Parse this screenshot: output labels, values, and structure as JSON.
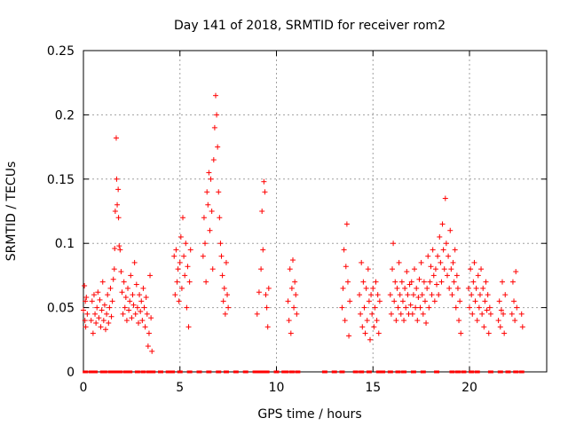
{
  "chart_data": {
    "type": "scatter",
    "title": "Day 141 of 2018, SRMTID for receiver rom2",
    "xlabel": "GPS time / hours",
    "ylabel": "SRMTID / TECUs",
    "xlim": [
      0,
      24
    ],
    "ylim": [
      0,
      0.25
    ],
    "xticks": [
      0,
      5,
      10,
      15,
      20
    ],
    "xtick_labels": [
      "0",
      "5",
      "10",
      "15",
      "20"
    ],
    "yticks": [
      0,
      0.05,
      0.1,
      0.15,
      0.2,
      0.25
    ],
    "ytick_labels": [
      "0",
      "0.05",
      "0.1",
      "0.15",
      "0.2",
      "0.25"
    ],
    "grid": true,
    "marker": "+",
    "color": "#ff0000",
    "zero_line_times": [
      0.1,
      0.4,
      0.5,
      0.6,
      1.0,
      1.1,
      1.4,
      1.5,
      1.7,
      1.9,
      2.2,
      2.4,
      2.8,
      3.1,
      3.4,
      3.6,
      4.0,
      4.4,
      4.6,
      5.0,
      5.5,
      6.0,
      6.5,
      7.0,
      7.4,
      7.9,
      8.4,
      8.9,
      9.1,
      9.3,
      9.5,
      10.0,
      10.4,
      10.5,
      10.8,
      11.1,
      12.5,
      13.0,
      13.4,
      14.1,
      14.4,
      14.8,
      15.3,
      15.5,
      15.9,
      16.3,
      16.6,
      17.1,
      17.6,
      18.3,
      19.1,
      19.4,
      19.7,
      20.1,
      20.4,
      21.1,
      21.6,
      22.0,
      22.4,
      22.7
    ],
    "series": [
      {
        "name": "SRMTID",
        "points": [
          [
            0.0,
            0.048
          ],
          [
            0.05,
            0.067
          ],
          [
            0.08,
            0.04
          ],
          [
            0.1,
            0.055
          ],
          [
            0.12,
            0.035
          ],
          [
            0.15,
            0.058
          ],
          [
            0.2,
            0.045
          ],
          [
            0.4,
            0.04
          ],
          [
            0.45,
            0.055
          ],
          [
            0.5,
            0.03
          ],
          [
            0.55,
            0.06
          ],
          [
            0.6,
            0.045
          ],
          [
            0.65,
            0.038
          ],
          [
            0.7,
            0.05
          ],
          [
            0.75,
            0.062
          ],
          [
            0.8,
            0.042
          ],
          [
            0.85,
            0.056
          ],
          [
            0.9,
            0.035
          ],
          [
            0.95,
            0.048
          ],
          [
            1.0,
            0.07
          ],
          [
            1.05,
            0.04
          ],
          [
            1.1,
            0.052
          ],
          [
            1.15,
            0.033
          ],
          [
            1.2,
            0.045
          ],
          [
            1.25,
            0.06
          ],
          [
            1.3,
            0.038
          ],
          [
            1.35,
            0.05
          ],
          [
            1.4,
            0.065
          ],
          [
            1.45,
            0.043
          ],
          [
            1.5,
            0.055
          ],
          [
            1.55,
            0.072
          ],
          [
            1.6,
            0.08
          ],
          [
            1.62,
            0.096
          ],
          [
            1.65,
            0.125
          ],
          [
            1.7,
            0.182
          ],
          [
            1.72,
            0.15
          ],
          [
            1.75,
            0.13
          ],
          [
            1.8,
            0.142
          ],
          [
            1.82,
            0.12
          ],
          [
            1.85,
            0.098
          ],
          [
            1.9,
            0.095
          ],
          [
            1.95,
            0.078
          ],
          [
            2.0,
            0.062
          ],
          [
            2.05,
            0.045
          ],
          [
            2.1,
            0.07
          ],
          [
            2.15,
            0.05
          ],
          [
            2.2,
            0.058
          ],
          [
            2.25,
            0.04
          ],
          [
            2.3,
            0.065
          ],
          [
            2.35,
            0.048
          ],
          [
            2.4,
            0.055
          ],
          [
            2.45,
            0.075
          ],
          [
            2.5,
            0.042
          ],
          [
            2.55,
            0.06
          ],
          [
            2.6,
            0.052
          ],
          [
            2.65,
            0.085
          ],
          [
            2.7,
            0.045
          ],
          [
            2.75,
            0.068
          ],
          [
            2.8,
            0.05
          ],
          [
            2.85,
            0.038
          ],
          [
            2.9,
            0.06
          ],
          [
            2.95,
            0.047
          ],
          [
            3.0,
            0.055
          ],
          [
            3.05,
            0.04
          ],
          [
            3.1,
            0.065
          ],
          [
            3.15,
            0.05
          ],
          [
            3.2,
            0.035
          ],
          [
            3.25,
            0.058
          ],
          [
            3.3,
            0.045
          ],
          [
            3.35,
            0.02
          ],
          [
            3.4,
            0.03
          ],
          [
            3.45,
            0.075
          ],
          [
            3.5,
            0.042
          ],
          [
            3.55,
            0.016
          ],
          [
            4.7,
            0.09
          ],
          [
            4.75,
            0.06
          ],
          [
            4.8,
            0.095
          ],
          [
            4.85,
            0.07
          ],
          [
            4.9,
            0.08
          ],
          [
            4.95,
            0.055
          ],
          [
            5.0,
            0.085
          ],
          [
            5.05,
            0.105
          ],
          [
            5.1,
            0.065
          ],
          [
            5.15,
            0.12
          ],
          [
            5.2,
            0.09
          ],
          [
            5.25,
            0.075
          ],
          [
            5.3,
            0.1
          ],
          [
            5.35,
            0.05
          ],
          [
            5.4,
            0.082
          ],
          [
            5.45,
            0.035
          ],
          [
            5.5,
            0.07
          ],
          [
            5.55,
            0.095
          ],
          [
            6.2,
            0.09
          ],
          [
            6.25,
            0.12
          ],
          [
            6.3,
            0.1
          ],
          [
            6.35,
            0.07
          ],
          [
            6.4,
            0.14
          ],
          [
            6.45,
            0.13
          ],
          [
            6.5,
            0.155
          ],
          [
            6.55,
            0.11
          ],
          [
            6.6,
            0.15
          ],
          [
            6.65,
            0.125
          ],
          [
            6.7,
            0.08
          ],
          [
            6.75,
            0.165
          ],
          [
            6.8,
            0.19
          ],
          [
            6.85,
            0.215
          ],
          [
            6.9,
            0.2
          ],
          [
            6.95,
            0.175
          ],
          [
            7.0,
            0.14
          ],
          [
            7.05,
            0.12
          ],
          [
            7.1,
            0.1
          ],
          [
            7.15,
            0.09
          ],
          [
            7.2,
            0.075
          ],
          [
            7.25,
            0.055
          ],
          [
            7.3,
            0.065
          ],
          [
            7.35,
            0.045
          ],
          [
            7.4,
            0.085
          ],
          [
            7.45,
            0.06
          ],
          [
            7.5,
            0.05
          ],
          [
            9.0,
            0.045
          ],
          [
            9.1,
            0.062
          ],
          [
            9.2,
            0.08
          ],
          [
            9.25,
            0.125
          ],
          [
            9.3,
            0.095
          ],
          [
            9.35,
            0.148
          ],
          [
            9.4,
            0.14
          ],
          [
            9.45,
            0.06
          ],
          [
            9.5,
            0.05
          ],
          [
            9.55,
            0.035
          ],
          [
            9.6,
            0.065
          ],
          [
            10.6,
            0.055
          ],
          [
            10.65,
            0.04
          ],
          [
            10.7,
            0.08
          ],
          [
            10.75,
            0.03
          ],
          [
            10.8,
            0.065
          ],
          [
            10.85,
            0.087
          ],
          [
            10.9,
            0.05
          ],
          [
            10.95,
            0.07
          ],
          [
            11.0,
            0.06
          ],
          [
            11.05,
            0.045
          ],
          [
            13.4,
            0.05
          ],
          [
            13.45,
            0.065
          ],
          [
            13.5,
            0.095
          ],
          [
            13.55,
            0.04
          ],
          [
            13.6,
            0.082
          ],
          [
            13.65,
            0.115
          ],
          [
            13.7,
            0.07
          ],
          [
            13.75,
            0.028
          ],
          [
            13.8,
            0.055
          ],
          [
            14.3,
            0.06
          ],
          [
            14.35,
            0.045
          ],
          [
            14.4,
            0.085
          ],
          [
            14.45,
            0.035
          ],
          [
            14.5,
            0.07
          ],
          [
            14.55,
            0.05
          ],
          [
            14.6,
            0.03
          ],
          [
            14.65,
            0.065
          ],
          [
            14.7,
            0.04
          ],
          [
            14.75,
            0.08
          ],
          [
            14.8,
            0.055
          ],
          [
            14.85,
            0.025
          ],
          [
            14.9,
            0.06
          ],
          [
            14.95,
            0.045
          ],
          [
            15.0,
            0.065
          ],
          [
            15.05,
            0.035
          ],
          [
            15.1,
            0.05
          ],
          [
            15.15,
            0.07
          ],
          [
            15.2,
            0.04
          ],
          [
            15.25,
            0.06
          ],
          [
            15.3,
            0.03
          ],
          [
            15.35,
            0.055
          ],
          [
            15.9,
            0.06
          ],
          [
            15.95,
            0.045
          ],
          [
            16.0,
            0.08
          ],
          [
            16.05,
            0.1
          ],
          [
            16.1,
            0.055
          ],
          [
            16.15,
            0.07
          ],
          [
            16.2,
            0.04
          ],
          [
            16.25,
            0.065
          ],
          [
            16.3,
            0.05
          ],
          [
            16.35,
            0.085
          ],
          [
            16.4,
            0.06
          ],
          [
            16.45,
            0.045
          ],
          [
            16.5,
            0.07
          ],
          [
            16.55,
            0.055
          ],
          [
            16.6,
            0.04
          ],
          [
            16.65,
            0.065
          ],
          [
            16.7,
            0.05
          ],
          [
            16.75,
            0.078
          ],
          [
            16.8,
            0.06
          ],
          [
            16.85,
            0.045
          ],
          [
            16.9,
            0.068
          ],
          [
            16.95,
            0.052
          ],
          [
            17.0,
            0.07
          ],
          [
            17.05,
            0.045
          ],
          [
            17.1,
            0.06
          ],
          [
            17.15,
            0.08
          ],
          [
            17.2,
            0.05
          ],
          [
            17.25,
            0.065
          ],
          [
            17.3,
            0.04
          ],
          [
            17.35,
            0.058
          ],
          [
            17.4,
            0.072
          ],
          [
            17.45,
            0.05
          ],
          [
            17.5,
            0.085
          ],
          [
            17.55,
            0.06
          ],
          [
            17.6,
            0.045
          ],
          [
            17.65,
            0.07
          ],
          [
            17.7,
            0.055
          ],
          [
            17.75,
            0.038
          ],
          [
            17.8,
            0.065
          ],
          [
            17.85,
            0.09
          ],
          [
            17.9,
            0.05
          ],
          [
            17.95,
            0.07
          ],
          [
            18.0,
            0.082
          ],
          [
            18.05,
            0.06
          ],
          [
            18.1,
            0.095
          ],
          [
            18.15,
            0.075
          ],
          [
            18.2,
            0.055
          ],
          [
            18.25,
            0.08
          ],
          [
            18.3,
            0.068
          ],
          [
            18.35,
            0.09
          ],
          [
            18.4,
            0.06
          ],
          [
            18.45,
            0.105
          ],
          [
            18.5,
            0.085
          ],
          [
            18.55,
            0.07
          ],
          [
            18.6,
            0.115
          ],
          [
            18.65,
            0.095
          ],
          [
            18.7,
            0.08
          ],
          [
            18.75,
            0.135
          ],
          [
            18.8,
            0.1
          ],
          [
            18.85,
            0.075
          ],
          [
            18.9,
            0.09
          ],
          [
            18.95,
            0.065
          ],
          [
            19.0,
            0.11
          ],
          [
            19.05,
            0.08
          ],
          [
            19.1,
            0.06
          ],
          [
            19.15,
            0.085
          ],
          [
            19.2,
            0.07
          ],
          [
            19.25,
            0.095
          ],
          [
            19.3,
            0.05
          ],
          [
            19.35,
            0.075
          ],
          [
            19.4,
            0.065
          ],
          [
            19.45,
            0.04
          ],
          [
            19.5,
            0.055
          ],
          [
            19.55,
            0.03
          ],
          [
            19.95,
            0.065
          ],
          [
            20.0,
            0.05
          ],
          [
            20.05,
            0.08
          ],
          [
            20.1,
            0.06
          ],
          [
            20.15,
            0.045
          ],
          [
            20.2,
            0.07
          ],
          [
            20.25,
            0.085
          ],
          [
            20.3,
            0.055
          ],
          [
            20.35,
            0.065
          ],
          [
            20.4,
            0.04
          ],
          [
            20.45,
            0.075
          ],
          [
            20.5,
            0.05
          ],
          [
            20.55,
            0.06
          ],
          [
            20.6,
            0.08
          ],
          [
            20.65,
            0.045
          ],
          [
            20.7,
            0.065
          ],
          [
            20.75,
            0.035
          ],
          [
            20.8,
            0.055
          ],
          [
            20.85,
            0.07
          ],
          [
            20.9,
            0.048
          ],
          [
            20.95,
            0.06
          ],
          [
            21.0,
            0.03
          ],
          [
            21.05,
            0.05
          ],
          [
            21.1,
            0.045
          ],
          [
            21.5,
            0.04
          ],
          [
            21.55,
            0.055
          ],
          [
            21.6,
            0.035
          ],
          [
            21.65,
            0.048
          ],
          [
            21.7,
            0.07
          ],
          [
            21.75,
            0.045
          ],
          [
            21.8,
            0.03
          ],
          [
            21.85,
            0.06
          ],
          [
            22.2,
            0.045
          ],
          [
            22.25,
            0.07
          ],
          [
            22.3,
            0.055
          ],
          [
            22.35,
            0.04
          ],
          [
            22.4,
            0.078
          ],
          [
            22.45,
            0.05
          ],
          [
            22.7,
            0.045
          ],
          [
            22.75,
            0.035
          ]
        ]
      }
    ]
  }
}
